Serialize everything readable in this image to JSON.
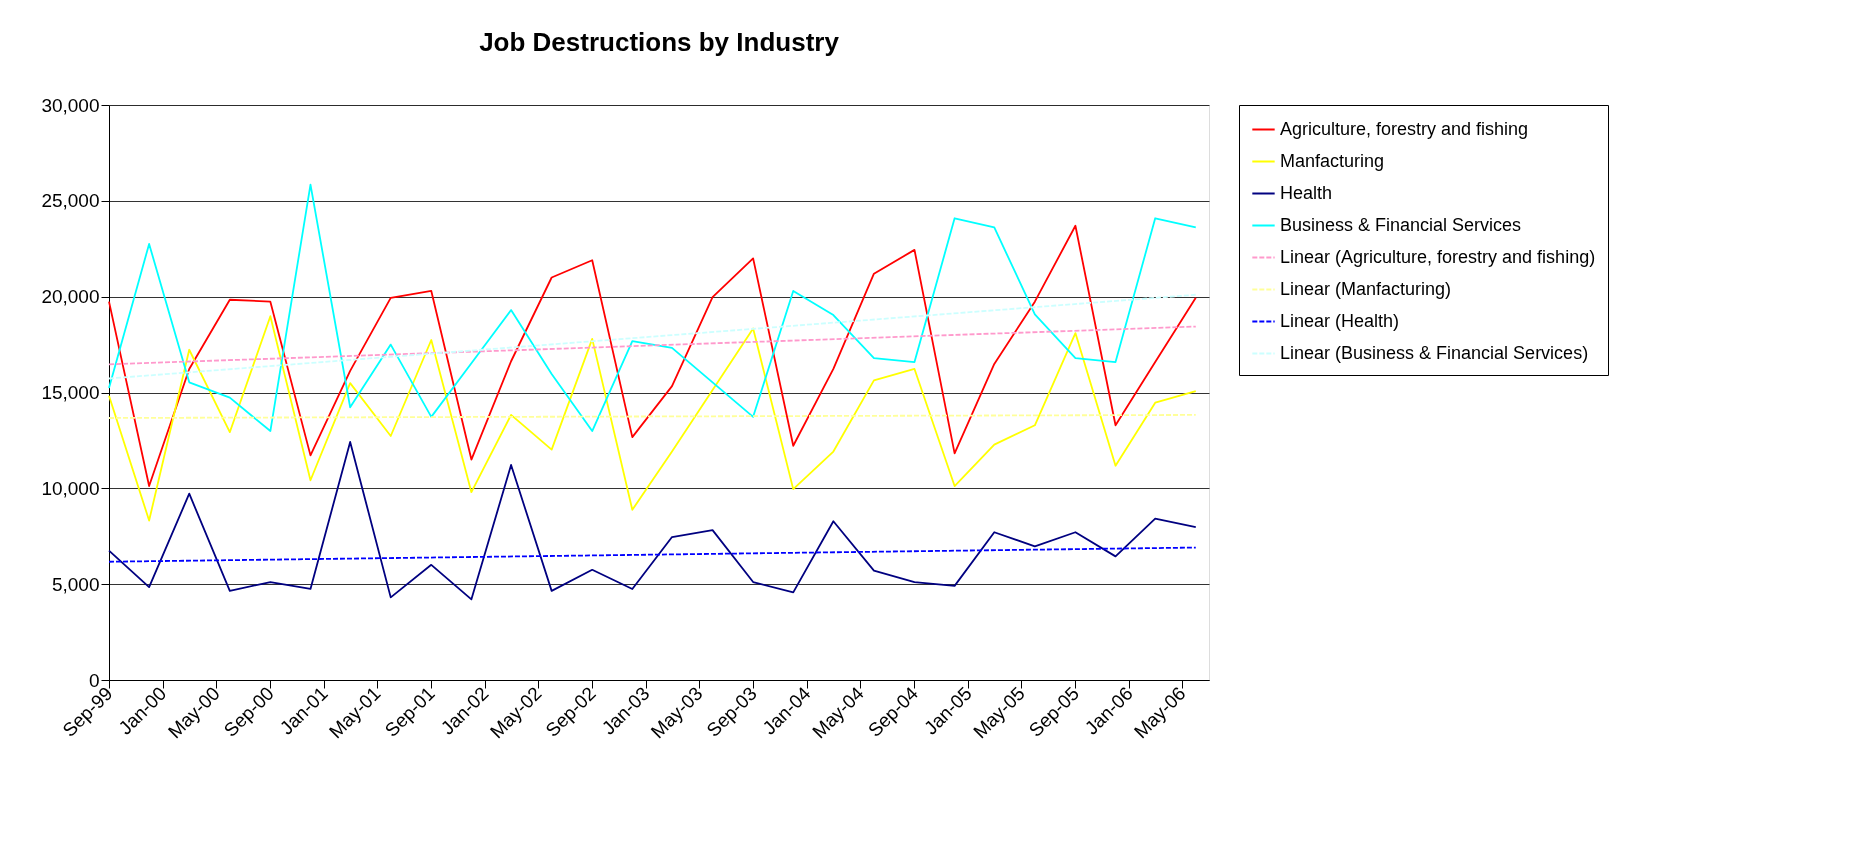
{
  "chart_data": {
    "type": "line",
    "title": "Job Destructions by Industry",
    "x": [
      "1999-09",
      "1999-12",
      "2000-03",
      "2000-06",
      "2000-09",
      "2000-12",
      "2001-03",
      "2001-06",
      "2001-09",
      "2001-12",
      "2002-03",
      "2002-06",
      "2002-09",
      "2002-12",
      "2003-03",
      "2003-06",
      "2003-09",
      "2003-12",
      "2004-03",
      "2004-06",
      "2004-09",
      "2004-12",
      "2005-03",
      "2005-06",
      "2005-09",
      "2005-12",
      "2006-03",
      "2006-06"
    ],
    "series": [
      {
        "name": "Agriculture, forestry and fishing",
        "color": "#ff0000",
        "values": [
          19740,
          10120,
          16230,
          19840,
          19740,
          11720,
          16130,
          19940,
          20300,
          11500,
          16630,
          21000,
          21900,
          12670,
          15330,
          19980,
          22000,
          12220,
          16230,
          21200,
          22440,
          11820,
          16490,
          19740,
          23700,
          13290,
          16590,
          19940
        ]
      },
      {
        "name": "Manfacturing",
        "color": "#ffff00",
        "values": [
          14830,
          8320,
          17230,
          12930,
          18980,
          10420,
          15490,
          12730,
          17740,
          9800,
          13830,
          12020,
          17800,
          8880,
          11920,
          15130,
          18340,
          9960,
          11920,
          15630,
          16230,
          10120,
          12280,
          13290,
          18100,
          11180,
          14470,
          15070
        ]
      },
      {
        "name": "Health",
        "color": "#000080",
        "values": [
          6750,
          4850,
          9720,
          4650,
          5110,
          4750,
          12420,
          4310,
          6010,
          4210,
          11220,
          4650,
          5750,
          4750,
          7460,
          7820,
          5110,
          4570,
          8280,
          5710,
          5110,
          4910,
          7710,
          6970,
          7710,
          6450,
          8420,
          7980
        ]
      },
      {
        "name": "Business & Financial Services",
        "color": "#00ffff",
        "values": [
          15230,
          22750,
          15530,
          14730,
          12990,
          25850,
          14230,
          17500,
          13730,
          16530,
          19300,
          15970,
          12990,
          17680,
          17330,
          15530,
          13730,
          20300,
          19040,
          16790,
          16590,
          24090,
          23610,
          19080,
          16790,
          16590,
          24090,
          23610
        ]
      },
      {
        "name": "Linear (Agriculture, forestry and fishing)",
        "color": "#ff99cc",
        "type": "line",
        "line_style": "dashed",
        "x": [
          "1999-09",
          "2006-06"
        ],
        "values": [
          16470,
          18440
        ]
      },
      {
        "name": "Linear (Manfacturing)",
        "color": "#ffff99",
        "type": "line",
        "line_style": "dashed",
        "x": [
          "1999-09",
          "2006-06"
        ],
        "values": [
          13670,
          13830
        ]
      },
      {
        "name": "Linear (Health)",
        "color": "#0000ff",
        "type": "line",
        "line_style": "dashed",
        "x": [
          "1999-09",
          "2006-06"
        ],
        "values": [
          6170,
          6910
        ]
      },
      {
        "name": "Linear (Business & Financial Services)",
        "color": "#ccffff",
        "type": "line",
        "line_style": "dashed",
        "x": [
          "1999-09",
          "2006-06"
        ],
        "values": [
          15730,
          20100
        ]
      }
    ],
    "xlim": [
      "1999-09",
      "2006-07"
    ],
    "xticks": [
      {
        "value": "1999-09",
        "label": "Sep-99"
      },
      {
        "value": "2000-01",
        "label": "Jan-00"
      },
      {
        "value": "2000-05",
        "label": "May-00"
      },
      {
        "value": "2000-09",
        "label": "Sep-00"
      },
      {
        "value": "2001-01",
        "label": "Jan-01"
      },
      {
        "value": "2001-05",
        "label": "May-01"
      },
      {
        "value": "2001-09",
        "label": "Sep-01"
      },
      {
        "value": "2002-01",
        "label": "Jan-02"
      },
      {
        "value": "2002-05",
        "label": "May-02"
      },
      {
        "value": "2002-09",
        "label": "Sep-02"
      },
      {
        "value": "2003-01",
        "label": "Jan-03"
      },
      {
        "value": "2003-05",
        "label": "May-03"
      },
      {
        "value": "2003-09",
        "label": "Sep-03"
      },
      {
        "value": "2004-01",
        "label": "Jan-04"
      },
      {
        "value": "2004-05",
        "label": "May-04"
      },
      {
        "value": "2004-09",
        "label": "Sep-04"
      },
      {
        "value": "2005-01",
        "label": "Jan-05"
      },
      {
        "value": "2005-05",
        "label": "May-05"
      },
      {
        "value": "2005-09",
        "label": "Sep-05"
      },
      {
        "value": "2006-01",
        "label": "Jan-06"
      },
      {
        "value": "2006-05",
        "label": "May-06"
      }
    ],
    "ylim": [
      0,
      30000
    ],
    "yticks": [
      {
        "value": 0,
        "label": "0"
      },
      {
        "value": 5000,
        "label": "5,000"
      },
      {
        "value": 10000,
        "label": "10,000"
      },
      {
        "value": 15000,
        "label": "15,000"
      },
      {
        "value": 20000,
        "label": "20,000"
      },
      {
        "value": 25000,
        "label": "25,000"
      },
      {
        "value": 30000,
        "label": "30,000"
      }
    ],
    "grid": "y",
    "legend": "right",
    "marker": "none"
  }
}
